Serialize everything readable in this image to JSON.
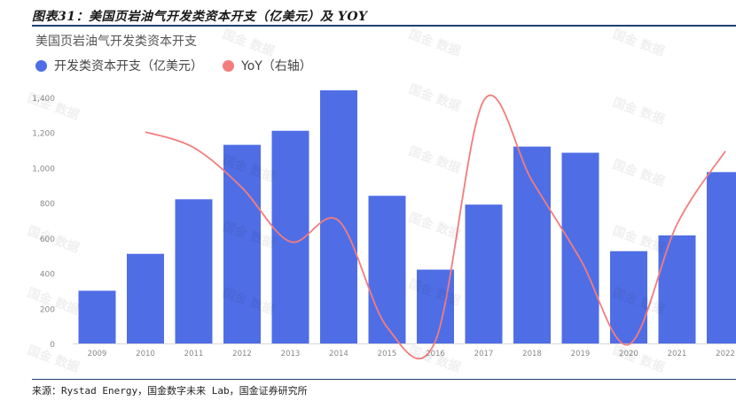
{
  "figure_caption": "图表31：美国页岩油气开发类资本开支（亿美元）及 YOY",
  "source_note": "来源：Rystad Energy，国金数字未来 Lab，国金证券研究所",
  "watermark_text": "国金 数据",
  "colors": {
    "bar": "#4f6ee6",
    "line": "#f47c7c",
    "axis_text": "#888888",
    "grid": "#eeeeee",
    "rule": "#1f3f73"
  },
  "chart_data": {
    "type": "bar",
    "title": "美国页岩油气开发类资本开支",
    "categories": [
      "2009",
      "2010",
      "2011",
      "2012",
      "2013",
      "2014",
      "2015",
      "2016",
      "2017",
      "2018",
      "2019",
      "2020",
      "2021",
      "2022"
    ],
    "series": [
      {
        "name": "开发类资本开支（亿美元）",
        "type": "bar",
        "axis": "left",
        "values": [
          300,
          510,
          820,
          1130,
          1210,
          1440,
          840,
          420,
          790,
          1120,
          1085,
          525,
          615,
          975
        ]
      },
      {
        "name": "YoY（右轴）",
        "type": "line",
        "axis": "right",
        "values": [
          null,
          0.7,
          0.61,
          0.38,
          0.07,
          0.19,
          -0.42,
          -0.5,
          0.88,
          0.42,
          -0.03,
          -0.52,
          0.17,
          0.59
        ]
      }
    ],
    "y_left_ticks": [
      "0",
      "200",
      "400",
      "600",
      "800",
      "1,000",
      "1,200",
      "1,400"
    ],
    "ylim_left": [
      0,
      1500
    ],
    "ylim_right": [
      -0.6,
      1.0
    ],
    "right_axis_visible": false,
    "grid": false,
    "legend_position": "top-left"
  }
}
